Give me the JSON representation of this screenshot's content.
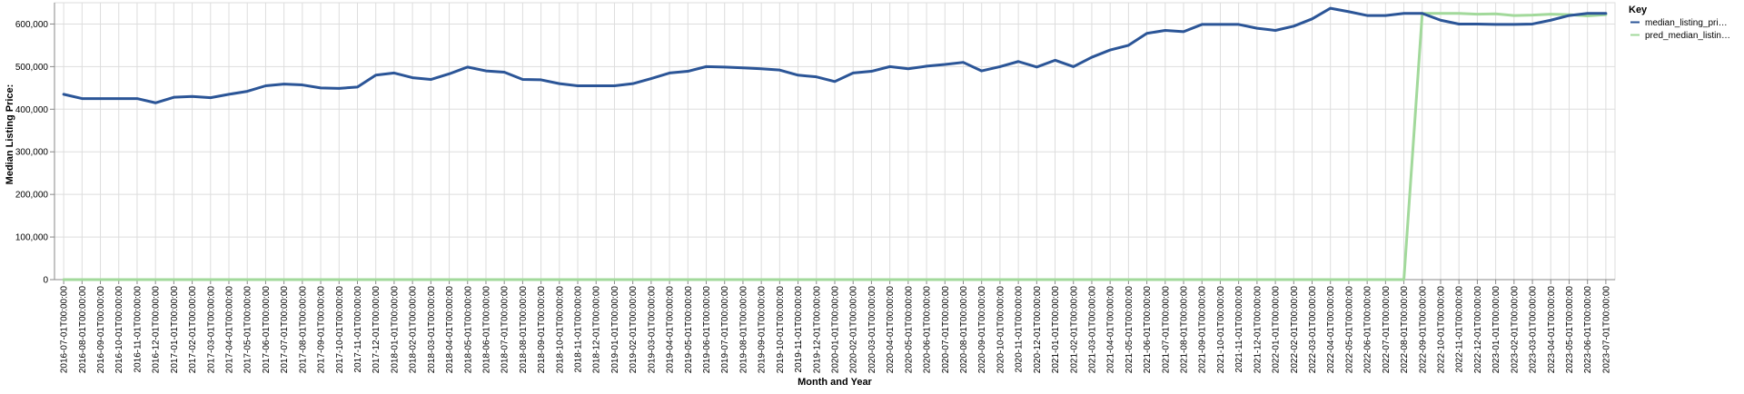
{
  "chart_data": {
    "type": "line",
    "xlabel": "Month and Year",
    "ylabel": "Median Listing Price:",
    "ylim": [
      0,
      650000
    ],
    "yticks": [
      0,
      100000,
      200000,
      300000,
      400000,
      500000,
      600000
    ],
    "ytick_labels": [
      "0",
      "100,000",
      "200,000",
      "300,000",
      "400,000",
      "500,000",
      "600,000"
    ],
    "grid": true,
    "legend_title": "Key",
    "legend_position": "top-right",
    "categories": [
      "2016-07-01T00:00:00",
      "2016-08-01T00:00:00",
      "2016-09-01T00:00:00",
      "2016-10-01T00:00:00",
      "2016-11-01T00:00:00",
      "2016-12-01T00:00:00",
      "2017-01-01T00:00:00",
      "2017-02-01T00:00:00",
      "2017-03-01T00:00:00",
      "2017-04-01T00:00:00",
      "2017-05-01T00:00:00",
      "2017-06-01T00:00:00",
      "2017-07-01T00:00:00",
      "2017-08-01T00:00:00",
      "2017-09-01T00:00:00",
      "2017-10-01T00:00:00",
      "2017-11-01T00:00:00",
      "2017-12-01T00:00:00",
      "2018-01-01T00:00:00",
      "2018-02-01T00:00:00",
      "2018-03-01T00:00:00",
      "2018-04-01T00:00:00",
      "2018-05-01T00:00:00",
      "2018-06-01T00:00:00",
      "2018-07-01T00:00:00",
      "2018-08-01T00:00:00",
      "2018-09-01T00:00:00",
      "2018-10-01T00:00:00",
      "2018-11-01T00:00:00",
      "2018-12-01T00:00:00",
      "2019-01-01T00:00:00",
      "2019-02-01T00:00:00",
      "2019-03-01T00:00:00",
      "2019-04-01T00:00:00",
      "2019-05-01T00:00:00",
      "2019-06-01T00:00:00",
      "2019-07-01T00:00:00",
      "2019-08-01T00:00:00",
      "2019-09-01T00:00:00",
      "2019-10-01T00:00:00",
      "2019-11-01T00:00:00",
      "2019-12-01T00:00:00",
      "2020-01-01T00:00:00",
      "2020-02-01T00:00:00",
      "2020-03-01T00:00:00",
      "2020-04-01T00:00:00",
      "2020-05-01T00:00:00",
      "2020-06-01T00:00:00",
      "2020-07-01T00:00:00",
      "2020-08-01T00:00:00",
      "2020-09-01T00:00:00",
      "2020-10-01T00:00:00",
      "2020-11-01T00:00:00",
      "2020-12-01T00:00:00",
      "2021-01-01T00:00:00",
      "2021-02-01T00:00:00",
      "2021-03-01T00:00:00",
      "2021-04-01T00:00:00",
      "2021-05-01T00:00:00",
      "2021-06-01T00:00:00",
      "2021-07-01T00:00:00",
      "2021-08-01T00:00:00",
      "2021-09-01T00:00:00",
      "2021-10-01T00:00:00",
      "2021-11-01T00:00:00",
      "2021-12-01T00:00:00",
      "2022-01-01T00:00:00",
      "2022-02-01T00:00:00",
      "2022-03-01T00:00:00",
      "2022-04-01T00:00:00",
      "2022-05-01T00:00:00",
      "2022-06-01T00:00:00",
      "2022-07-01T00:00:00",
      "2022-08-01T00:00:00",
      "2022-09-01T00:00:00",
      "2022-10-01T00:00:00",
      "2022-11-01T00:00:00",
      "2022-12-01T00:00:00",
      "2023-01-01T00:00:00",
      "2023-02-01T00:00:00",
      "2023-03-01T00:00:00",
      "2023-04-01T00:00:00",
      "2023-05-01T00:00:00",
      "2023-06-01T00:00:00",
      "2023-07-01T00:00:00"
    ],
    "series": [
      {
        "name": "median_listing_pri…",
        "color": "#2b5597",
        "values": [
          435000,
          425000,
          425000,
          424900,
          425000,
          415000,
          428000,
          430000,
          427000,
          435000,
          442000,
          455000,
          459000,
          457000,
          450000,
          449000,
          452000,
          480000,
          485000,
          474000,
          469900,
          483000,
          499000,
          490000,
          487000,
          470000,
          469000,
          460000,
          455000,
          455000,
          455000,
          460000,
          472000,
          485000,
          489000,
          500000,
          499000,
          497000,
          495000,
          492000,
          480000,
          476000,
          465000,
          485000,
          489000,
          500000,
          495000,
          501000,
          505000,
          510000,
          490000,
          499900,
          512000,
          499000,
          515000,
          499900,
          522000,
          539000,
          550000,
          578000,
          585000,
          582000,
          599000,
          599000,
          599000,
          590000,
          585000,
          595000,
          612000,
          637000,
          629000,
          620000,
          620000,
          625000,
          625000,
          609000,
          599900,
          599900,
          599000,
          599000,
          600000,
          609000,
          620000,
          625000,
          625000
        ]
      },
      {
        "name": "pred_median_listin…",
        "color": "#a2d99b",
        "values": [
          0,
          0,
          0,
          0,
          0,
          0,
          0,
          0,
          0,
          0,
          0,
          0,
          0,
          0,
          0,
          0,
          0,
          0,
          0,
          0,
          0,
          0,
          0,
          0,
          0,
          0,
          0,
          0,
          0,
          0,
          0,
          0,
          0,
          0,
          0,
          0,
          0,
          0,
          0,
          0,
          0,
          0,
          0,
          0,
          0,
          0,
          0,
          0,
          0,
          0,
          0,
          0,
          0,
          0,
          0,
          0,
          0,
          0,
          0,
          0,
          0,
          0,
          0,
          0,
          0,
          0,
          0,
          0,
          0,
          0,
          0,
          0,
          0,
          0,
          625000,
          625000,
          625000,
          623000,
          624000,
          620000,
          621000,
          623000,
          622000,
          619000,
          622000
        ]
      }
    ]
  }
}
